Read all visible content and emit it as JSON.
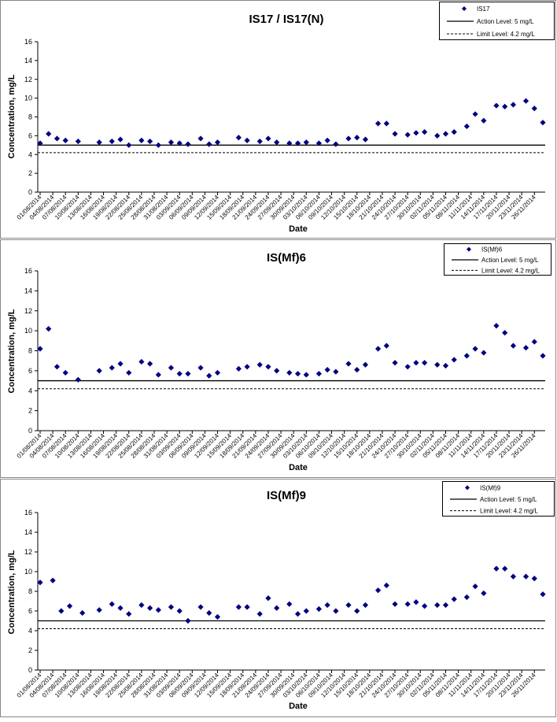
{
  "colors": {
    "marker": "#000080",
    "line": "#000000",
    "panel_border": "#888888"
  },
  "xticks": [
    "01/08/2014",
    "04/08/2014",
    "07/08/2014",
    "10/08/2014",
    "13/08/2014",
    "16/08/2014",
    "19/08/2014",
    "22/08/2014",
    "25/08/2014",
    "28/08/2014",
    "31/08/2014",
    "03/09/2014",
    "06/09/2014",
    "09/09/2014",
    "12/09/2014",
    "15/09/2014",
    "18/09/2014",
    "21/09/2014",
    "24/09/2014",
    "27/09/2014",
    "30/09/2014",
    "03/10/2014",
    "06/10/2014",
    "09/10/2014",
    "12/10/2014",
    "15/10/2014",
    "18/10/2014",
    "21/10/2014",
    "24/10/2014",
    "27/10/2014",
    "30/10/2014",
    "02/11/2014",
    "05/11/2014",
    "08/11/2014",
    "11/11/2014",
    "14/11/2014",
    "17/11/2014",
    "20/11/2014",
    "23/11/2014",
    "26/11/2014"
  ],
  "chart_data": [
    {
      "type": "scatter",
      "title": "IS17 / IS17(N)",
      "xlabel": "Date",
      "ylabel": "Concentration, mg/L",
      "ylim": [
        0,
        16
      ],
      "yticks": [
        "0",
        "2",
        "4",
        "6",
        "8",
        "10",
        "12",
        "14",
        "16"
      ],
      "legend_position": "top-right",
      "legend": {
        "series": "IS17",
        "action": "Action Level: 5 mg/L",
        "limit": "Limit Level: 4.2 mg/L"
      },
      "action_level": 5,
      "limit_level": 4.2,
      "series": [
        {
          "name": "IS17",
          "points": [
            [
              "01/08/2014",
              5.2
            ],
            [
              "03/08/2014",
              6.2
            ],
            [
              "05/08/2014",
              5.7
            ],
            [
              "07/08/2014",
              5.5
            ],
            [
              "10/08/2014",
              5.4
            ],
            [
              "15/08/2014",
              5.3
            ],
            [
              "18/08/2014",
              5.4
            ],
            [
              "20/08/2014",
              5.6
            ],
            [
              "22/08/2014",
              5.0
            ],
            [
              "25/08/2014",
              5.5
            ],
            [
              "27/08/2014",
              5.4
            ],
            [
              "29/08/2014",
              5.0
            ],
            [
              "01/09/2014",
              5.3
            ],
            [
              "03/09/2014",
              5.2
            ],
            [
              "05/09/2014",
              5.1
            ],
            [
              "08/09/2014",
              5.7
            ],
            [
              "10/09/2014",
              5.1
            ],
            [
              "12/09/2014",
              5.3
            ],
            [
              "17/09/2014",
              5.8
            ],
            [
              "19/09/2014",
              5.5
            ],
            [
              "22/09/2014",
              5.4
            ],
            [
              "24/09/2014",
              5.7
            ],
            [
              "26/09/2014",
              5.3
            ],
            [
              "29/09/2014",
              5.2
            ],
            [
              "01/10/2014",
              5.2
            ],
            [
              "03/10/2014",
              5.3
            ],
            [
              "06/10/2014",
              5.2
            ],
            [
              "08/10/2014",
              5.5
            ],
            [
              "10/10/2014",
              5.1
            ],
            [
              "13/10/2014",
              5.7
            ],
            [
              "15/10/2014",
              5.8
            ],
            [
              "17/10/2014",
              5.6
            ],
            [
              "20/10/2014",
              7.3
            ],
            [
              "22/10/2014",
              7.3
            ],
            [
              "24/10/2014",
              6.2
            ],
            [
              "27/10/2014",
              6.1
            ],
            [
              "29/10/2014",
              6.3
            ],
            [
              "31/10/2014",
              6.4
            ],
            [
              "03/11/2014",
              6.0
            ],
            [
              "05/11/2014",
              6.2
            ],
            [
              "07/11/2014",
              6.4
            ],
            [
              "10/11/2014",
              7.0
            ],
            [
              "12/11/2014",
              8.3
            ],
            [
              "14/11/2014",
              7.6
            ],
            [
              "17/11/2014",
              9.2
            ],
            [
              "19/11/2014",
              9.1
            ],
            [
              "21/11/2014",
              9.3
            ],
            [
              "24/11/2014",
              9.7
            ],
            [
              "26/11/2014",
              8.9
            ],
            [
              "28/11/2014",
              7.4
            ]
          ]
        }
      ]
    },
    {
      "type": "scatter",
      "title": "IS(Mf)6",
      "xlabel": "Date",
      "ylabel": "Concentration, mg/L",
      "ylim": [
        0,
        16
      ],
      "yticks": [
        "0",
        "2",
        "4",
        "6",
        "8",
        "10",
        "12",
        "14",
        "16"
      ],
      "legend_position": "top-right",
      "legend": {
        "series": "IS(Mf)6",
        "action": "Action Level: 5 mg/L",
        "limit": "Limit Level: 4.2 mg/L"
      },
      "action_level": 5,
      "limit_level": 4.2,
      "series": [
        {
          "name": "IS(Mf)6",
          "points": [
            [
              "01/08/2014",
              8.2
            ],
            [
              "03/08/2014",
              10.2
            ],
            [
              "05/08/2014",
              6.4
            ],
            [
              "07/08/2014",
              5.8
            ],
            [
              "10/08/2014",
              5.1
            ],
            [
              "15/08/2014",
              6.0
            ],
            [
              "18/08/2014",
              6.3
            ],
            [
              "20/08/2014",
              6.7
            ],
            [
              "22/08/2014",
              5.8
            ],
            [
              "25/08/2014",
              6.9
            ],
            [
              "27/08/2014",
              6.7
            ],
            [
              "29/08/2014",
              5.6
            ],
            [
              "01/09/2014",
              6.3
            ],
            [
              "03/09/2014",
              5.7
            ],
            [
              "05/09/2014",
              5.7
            ],
            [
              "08/09/2014",
              6.3
            ],
            [
              "10/09/2014",
              5.5
            ],
            [
              "12/09/2014",
              5.8
            ],
            [
              "17/09/2014",
              6.2
            ],
            [
              "19/09/2014",
              6.4
            ],
            [
              "22/09/2014",
              6.6
            ],
            [
              "24/09/2014",
              6.4
            ],
            [
              "26/09/2014",
              6.0
            ],
            [
              "29/09/2014",
              5.8
            ],
            [
              "01/10/2014",
              5.7
            ],
            [
              "03/10/2014",
              5.6
            ],
            [
              "06/10/2014",
              5.7
            ],
            [
              "08/10/2014",
              6.1
            ],
            [
              "10/10/2014",
              5.9
            ],
            [
              "13/10/2014",
              6.7
            ],
            [
              "15/10/2014",
              6.1
            ],
            [
              "17/10/2014",
              6.6
            ],
            [
              "20/10/2014",
              8.2
            ],
            [
              "22/10/2014",
              8.5
            ],
            [
              "24/10/2014",
              6.8
            ],
            [
              "27/10/2014",
              6.4
            ],
            [
              "29/10/2014",
              6.8
            ],
            [
              "31/10/2014",
              6.8
            ],
            [
              "03/11/2014",
              6.6
            ],
            [
              "05/11/2014",
              6.5
            ],
            [
              "07/11/2014",
              7.1
            ],
            [
              "10/11/2014",
              7.5
            ],
            [
              "12/11/2014",
              8.2
            ],
            [
              "14/11/2014",
              7.8
            ],
            [
              "17/11/2014",
              10.5
            ],
            [
              "19/11/2014",
              9.8
            ],
            [
              "21/11/2014",
              8.5
            ],
            [
              "24/11/2014",
              8.3
            ],
            [
              "26/11/2014",
              8.9
            ],
            [
              "28/11/2014",
              7.5
            ]
          ]
        }
      ]
    },
    {
      "type": "scatter",
      "title": "IS(Mf)9",
      "xlabel": "Date",
      "ylabel": "Concentration, mg/L",
      "ylim": [
        0,
        16
      ],
      "yticks": [
        "0",
        "2",
        "4",
        "6",
        "8",
        "10",
        "12",
        "14",
        "16"
      ],
      "legend_position": "top-right",
      "legend": {
        "series": "IS(Mf)9",
        "action": "Action Level: 5 mg/L",
        "limit": "Limit Level: 4.2 mg/L"
      },
      "action_level": 5,
      "limit_level": 4.2,
      "series": [
        {
          "name": "IS(Mf)9",
          "points": [
            [
              "01/08/2014",
              8.9
            ],
            [
              "04/08/2014",
              9.1
            ],
            [
              "06/08/2014",
              6.0
            ],
            [
              "08/08/2014",
              6.5
            ],
            [
              "11/08/2014",
              5.8
            ],
            [
              "15/08/2014",
              6.1
            ],
            [
              "18/08/2014",
              6.7
            ],
            [
              "20/08/2014",
              6.3
            ],
            [
              "22/08/2014",
              5.7
            ],
            [
              "25/08/2014",
              6.6
            ],
            [
              "27/08/2014",
              6.3
            ],
            [
              "29/08/2014",
              6.1
            ],
            [
              "01/09/2014",
              6.4
            ],
            [
              "03/09/2014",
              6.0
            ],
            [
              "05/09/2014",
              5.0
            ],
            [
              "08/09/2014",
              6.4
            ],
            [
              "10/09/2014",
              5.8
            ],
            [
              "12/09/2014",
              5.4
            ],
            [
              "17/09/2014",
              6.4
            ],
            [
              "19/09/2014",
              6.4
            ],
            [
              "22/09/2014",
              5.7
            ],
            [
              "24/09/2014",
              7.3
            ],
            [
              "26/09/2014",
              6.3
            ],
            [
              "29/09/2014",
              6.7
            ],
            [
              "01/10/2014",
              5.7
            ],
            [
              "03/10/2014",
              6.0
            ],
            [
              "06/10/2014",
              6.2
            ],
            [
              "08/10/2014",
              6.6
            ],
            [
              "10/10/2014",
              6.0
            ],
            [
              "13/10/2014",
              6.6
            ],
            [
              "15/10/2014",
              6.0
            ],
            [
              "17/10/2014",
              6.6
            ],
            [
              "20/10/2014",
              8.1
            ],
            [
              "22/10/2014",
              8.6
            ],
            [
              "24/10/2014",
              6.7
            ],
            [
              "27/10/2014",
              6.7
            ],
            [
              "29/10/2014",
              6.9
            ],
            [
              "31/10/2014",
              6.5
            ],
            [
              "03/11/2014",
              6.6
            ],
            [
              "05/11/2014",
              6.6
            ],
            [
              "07/11/2014",
              7.2
            ],
            [
              "10/11/2014",
              7.4
            ],
            [
              "12/11/2014",
              8.5
            ],
            [
              "14/11/2014",
              7.8
            ],
            [
              "17/11/2014",
              10.3
            ],
            [
              "19/11/2014",
              10.3
            ],
            [
              "21/11/2014",
              9.5
            ],
            [
              "24/11/2014",
              9.5
            ],
            [
              "26/11/2014",
              9.3
            ],
            [
              "28/11/2014",
              7.7
            ]
          ]
        }
      ]
    }
  ]
}
